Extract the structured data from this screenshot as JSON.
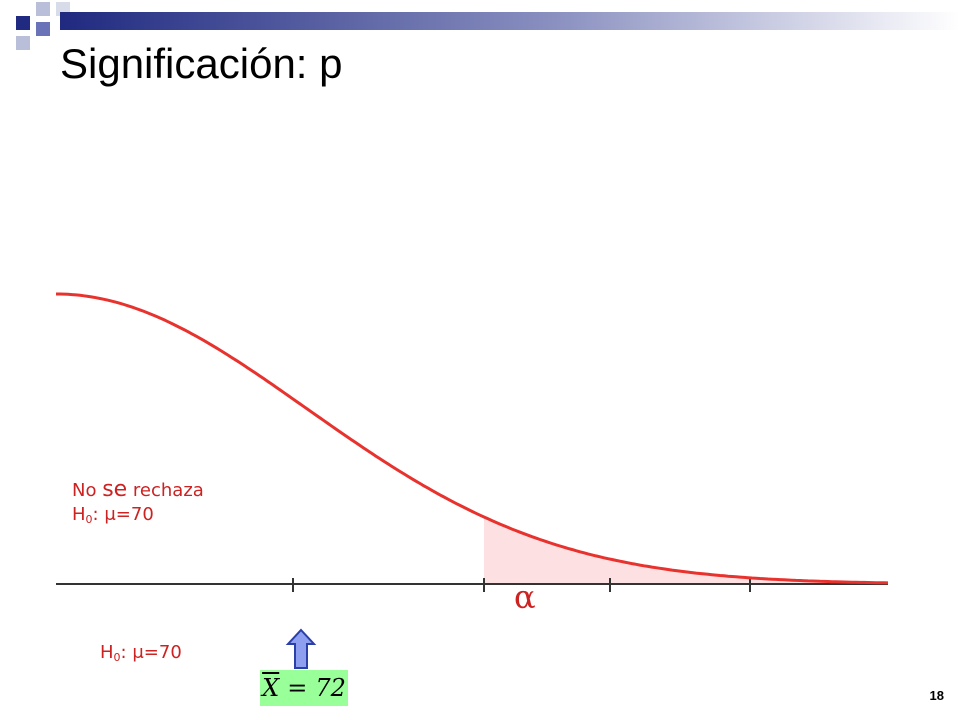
{
  "slide": {
    "title": "Significación: p",
    "page_number": "18"
  },
  "region_label": {
    "line1_a": "No ",
    "line1_b": "se",
    "line1_c": " rechaza",
    "line2_h": "H",
    "line2_sub": "0",
    "line2_rest": ": μ=70"
  },
  "null_hypothesis": {
    "h": "H",
    "sub": "0",
    "rest": ": μ=70"
  },
  "alpha_symbol": "α",
  "sample_mean": {
    "symbol": "X",
    "eq": "=",
    "value": "72"
  },
  "colors": {
    "curve": "#e8322e",
    "tail_fill": "#fde0e2",
    "axis": "#333333",
    "arrow_fill": "#8f9fef",
    "arrow_stroke": "#2a3fa8",
    "label": "#cc2222",
    "mean_box": "#99ff99"
  }
}
